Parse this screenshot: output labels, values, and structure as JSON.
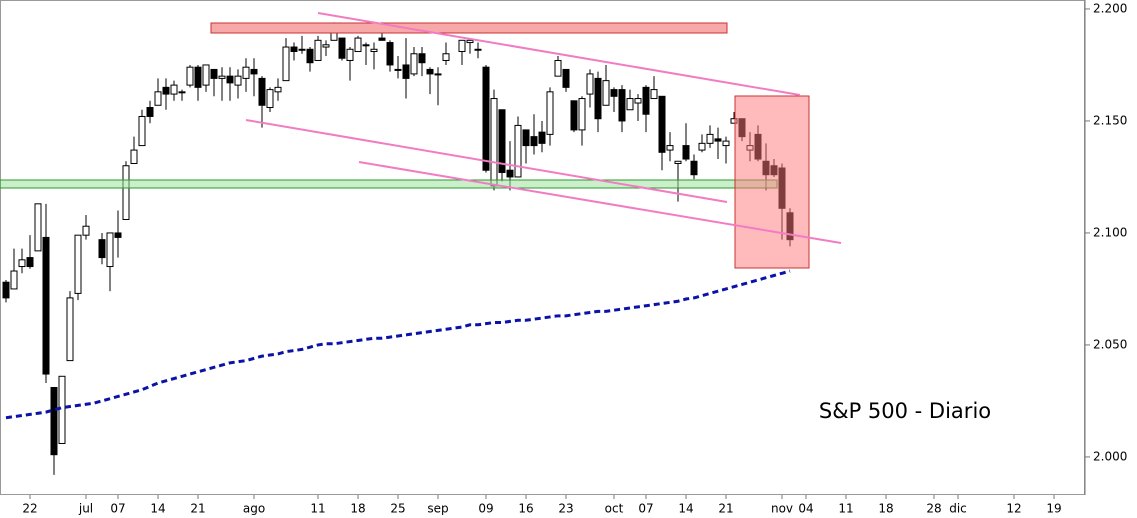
{
  "chart_data": {
    "type": "candlestick",
    "title": "S&P 500 - Diario",
    "categories": [
      null,
      null,
      null,
      "22",
      null,
      null,
      null,
      null,
      null,
      null,
      "jul",
      null,
      null,
      null,
      "07",
      null,
      null,
      null,
      null,
      "14",
      null,
      null,
      null,
      null,
      "21",
      null,
      null,
      null,
      null,
      null,
      null,
      "ago",
      null,
      null,
      null,
      null,
      null,
      null,
      null,
      "11",
      null,
      null,
      null,
      null,
      "18",
      null,
      null,
      null,
      null,
      "25",
      null,
      null,
      null,
      null,
      "sep",
      null,
      null,
      null,
      null,
      null,
      "09",
      null,
      null,
      null,
      null,
      "16",
      null,
      null,
      null,
      null,
      "23",
      null,
      null,
      null,
      null,
      null,
      "oct",
      null,
      null,
      null,
      "07",
      null,
      null,
      null,
      null,
      "14",
      null,
      null,
      null,
      null,
      "21",
      null,
      null,
      null,
      null,
      null,
      null,
      "nov",
      null,
      null,
      "04",
      null,
      null,
      null,
      null,
      "11",
      null,
      null,
      null,
      null,
      "18",
      null,
      null,
      null,
      null,
      null,
      "28",
      null,
      null,
      "dic",
      null,
      null,
      null,
      null,
      null,
      null,
      "12",
      null,
      null,
      null,
      null,
      "19",
      null,
      null,
      null
    ],
    "open": [
      2078,
      2075,
      2085,
      2089,
      2092,
      2098,
      2031,
      2006,
      2043,
      2073,
      2099,
      null,
      2097,
      2085,
      2100,
      2106,
      2131,
      2139,
      2156,
      2157,
      2165,
      2162,
      2163,
      2166,
      2174,
      2166,
      2173,
      2169,
      2170,
      2166,
      2169,
      2173,
      2169,
      2156,
      2163,
      2168,
      2183,
      2182,
      2182,
      2177,
      2183,
      2186,
      2187,
      2177,
      2181,
      2184,
      2181,
      2187,
      2185,
      2173,
      2175,
      2171,
      2180,
      2173,
      2171,
      2177,
      null,
      2181,
      2185,
      2182,
      2174,
      2121,
      2155,
      2128,
      2125,
      2146,
      2143,
      2145,
      2144,
      2170,
      2173,
      2159,
      2146,
      2162,
      2169,
      2157,
      2164,
      2164,
      2155,
      2158,
      2165,
      2160,
      2161,
      2137,
      2131,
      2139,
      2132,
      2137,
      2140,
      2142,
      2139,
      2149,
      2151,
      2137,
      2144,
      2132,
      2130,
      2129,
      2109,
      null,
      null,
      null,
      null,
      null,
      null,
      null,
      null,
      null,
      null,
      null,
      null,
      null,
      null,
      null,
      null,
      null,
      null,
      null,
      null,
      null,
      null,
      null,
      null,
      null,
      null,
      null,
      null,
      null,
      null,
      null,
      null,
      null,
      null,
      null,
      null
    ],
    "high": [
      2079,
      2093,
      2093,
      2099,
      2113,
      2113,
      2031,
      2036,
      2074,
      2099,
      2108,
      null,
      2100,
      2100,
      2110,
      2132,
      2143,
      2155,
      2159,
      2169,
      2169,
      2168,
      2164,
      2175,
      2175,
      2175,
      2173,
      2174,
      2174,
      2173,
      2178,
      2178,
      2170,
      2165,
      2169,
      2187,
      2185,
      2188,
      2183,
      2188,
      2186,
      2194,
      2187,
      2183,
      2188,
      2185,
      2185,
      2194,
      2186,
      2179,
      2187,
      2183,
      2183,
      2174,
      2174,
      2185,
      null,
      2186,
      2187,
      2185,
      2175,
      2164,
      2155,
      2141,
      2152,
      2146,
      2153,
      2150,
      2165,
      2179,
      2173,
      2159,
      2161,
      2173,
      2172,
      2175,
      2165,
      2166,
      2164,
      2162,
      2166,
      2170,
      2161,
      2145,
      2132,
      2149,
      2135,
      2144,
      2148,
      2147,
      2143,
      2154,
      2151,
      2145,
      2148,
      2140,
      2133,
      2131,
      2111,
      null,
      null,
      null,
      null,
      null,
      null,
      null,
      null,
      null,
      null,
      null,
      null,
      null,
      null,
      null,
      null,
      null,
      null,
      null,
      null,
      null,
      null,
      null,
      null,
      null,
      null,
      null,
      null,
      null,
      null,
      null,
      null,
      null,
      null,
      null,
      null
    ],
    "low": [
      2069,
      2075,
      2082,
      2084,
      2092,
      2033,
      1992,
      2006,
      2043,
      2070,
      2097,
      null,
      2086,
      2074,
      2089,
      2106,
      2131,
      2139,
      2149,
      2157,
      2155,
      2159,
      2159,
      2165,
      2159,
      2163,
      2161,
      2159,
      2159,
      2160,
      2163,
      2161,
      2147,
      2154,
      2159,
      2168,
      2177,
      2180,
      2172,
      2177,
      2179,
      2186,
      2177,
      2168,
      2181,
      2175,
      2173,
      2186,
      2172,
      2169,
      2160,
      2170,
      2170,
      2162,
      2157,
      2175,
      null,
      2175,
      2180,
      2178,
      2127,
      2119,
      2123,
      2119,
      2125,
      2131,
      2135,
      2136,
      2139,
      2170,
      2163,
      2145,
      2139,
      2156,
      2145,
      2157,
      2154,
      2145,
      2155,
      2150,
      2145,
      2160,
      2128,
      2132,
      2114,
      2132,
      2124,
      2136,
      2138,
      2133,
      2131,
      2149,
      2141,
      2132,
      2132,
      2119,
      2125,
      2097,
      2094,
      null,
      null,
      null,
      null,
      null,
      null,
      null,
      null,
      null,
      null,
      null,
      null,
      null,
      null,
      null,
      null,
      null,
      null,
      null,
      null,
      null,
      null,
      null,
      null,
      null,
      null,
      null,
      null,
      null,
      null,
      null,
      null,
      null,
      null,
      null,
      null
    ],
    "close": [
      2071,
      2083,
      2088,
      2085,
      2113,
      2037,
      2001,
      2036,
      2071,
      2099,
      2103,
      null,
      2089,
      2100,
      2098,
      2130,
      2137,
      2152,
      2152,
      2163,
      2162,
      2166,
      2163,
      2174,
      2165,
      2175,
      2169,
      2170,
      2167,
      2170,
      2174,
      2171,
      2157,
      2164,
      2165,
      2183,
      2181,
      2182,
      2176,
      2186,
      2184,
      2190,
      2178,
      2182,
      2187,
      2184,
      2182,
      2186,
      2175,
      2173,
      2169,
      2180,
      2176,
      2171,
      2171,
      2180,
      null,
      2186,
      2186,
      2182,
      2128,
      2160,
      2127,
      2125,
      2148,
      2139,
      2139,
      2140,
      2163,
      2177,
      2165,
      2146,
      2160,
      2171,
      2151,
      2168,
      2161,
      2150,
      2160,
      2160,
      2153,
      2164,
      2136,
      2139,
      2132,
      2133,
      2126,
      2140,
      2144,
      2141,
      2141,
      2151,
      2143,
      2139,
      2133,
      2126,
      2126,
      2111,
      2097,
      null,
      null,
      null,
      null,
      null,
      null,
      null,
      null,
      null,
      null,
      null,
      null,
      null,
      null,
      null,
      null,
      null,
      null,
      null,
      null,
      null,
      null,
      null,
      null,
      null,
      null,
      null,
      null,
      null,
      null,
      null,
      null,
      null,
      null,
      null,
      null
    ],
    "up_color": "#ffffff",
    "down_color": "#000000",
    "ma": {
      "color": "#0a12a8",
      "values": [
        2017.5,
        2018,
        2018.5,
        2019,
        2019.5,
        2020,
        2021,
        2022,
        2022.5,
        2023,
        2023.5,
        2024,
        2025,
        2026,
        2027,
        2028,
        2029,
        2030,
        2031.5,
        2033,
        2034,
        2035,
        2036,
        2037,
        2038,
        2039,
        2040,
        2041,
        2042,
        2042.5,
        2043,
        2044,
        2045,
        2045.5,
        2046,
        2047,
        2047.5,
        2048,
        2049,
        2050,
        2050.5,
        2050.5,
        2051,
        2051.5,
        2052,
        2052.5,
        2053,
        2053,
        2053.5,
        2054,
        2054.5,
        2055,
        2055.5,
        2056,
        2056.5,
        2057,
        2057.5,
        2058,
        2059,
        2059,
        2059.5,
        2060,
        2060,
        2060.5,
        2061,
        2061,
        2061.5,
        2062,
        2062.5,
        2063,
        2063,
        2063.5,
        2064,
        2064.5,
        2065,
        2065,
        2065.5,
        2066,
        2066.5,
        2067,
        2067.5,
        2068,
        2068.5,
        2069,
        2069.5,
        2070.5,
        2071,
        2072,
        2073,
        2074,
        2075,
        2076,
        2077,
        2078,
        2079,
        2080,
        2081,
        2082,
        2083,
        null,
        null,
        null,
        null,
        null,
        null,
        null,
        null,
        null,
        null,
        null,
        null,
        null,
        null,
        null,
        null,
        null,
        null,
        null,
        null,
        null,
        null,
        null,
        null,
        null,
        null,
        null,
        null,
        null,
        null,
        null,
        null,
        null,
        null,
        null,
        null
      ]
    },
    "ylim": [
      1983,
      2204
    ],
    "yticks": [
      {
        "value": 2000,
        "label": "2.000"
      },
      {
        "value": 2050,
        "label": "2.050"
      },
      {
        "value": 2100,
        "label": "2.100"
      },
      {
        "value": 2150,
        "label": "2.150"
      },
      {
        "value": 2200,
        "label": "2.200"
      }
    ]
  }
}
